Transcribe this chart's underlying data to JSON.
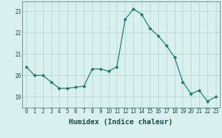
{
  "x": [
    0,
    1,
    2,
    3,
    4,
    5,
    6,
    7,
    8,
    9,
    10,
    11,
    12,
    13,
    14,
    15,
    16,
    17,
    18,
    19,
    20,
    21,
    22,
    23
  ],
  "y": [
    20.4,
    20.0,
    20.0,
    19.7,
    19.4,
    19.4,
    19.45,
    19.5,
    20.3,
    20.3,
    20.2,
    20.4,
    22.6,
    23.1,
    22.85,
    22.2,
    21.85,
    21.4,
    20.85,
    19.7,
    19.15,
    19.3,
    18.8,
    19.0
  ],
  "line_color": "#1a7a6e",
  "marker": "D",
  "marker_size": 2.2,
  "bg_color": "#d8f0ee",
  "grid_color": "#b8d4d0",
  "xlabel": "Humidex (Indice chaleur)",
  "xlim": [
    -0.5,
    23.5
  ],
  "ylim": [
    18.5,
    23.45
  ],
  "yticks": [
    19,
    20,
    21,
    22,
    23
  ],
  "xticks": [
    0,
    1,
    2,
    3,
    4,
    5,
    6,
    7,
    8,
    9,
    10,
    11,
    12,
    13,
    14,
    15,
    16,
    17,
    18,
    19,
    20,
    21,
    22,
    23
  ],
  "tick_fontsize": 5.5,
  "xlabel_fontsize": 7.5
}
